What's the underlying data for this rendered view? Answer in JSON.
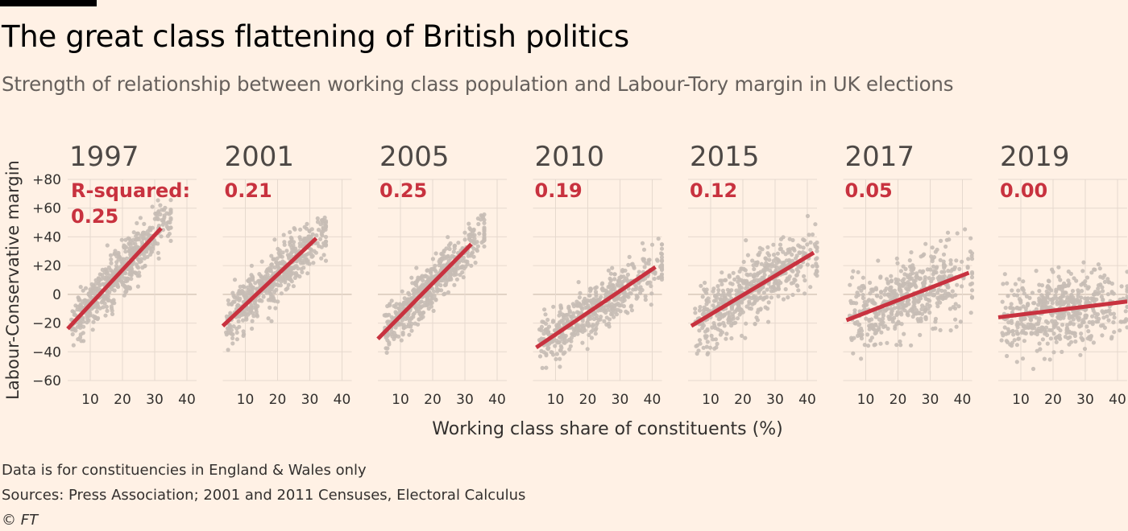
{
  "header": {
    "title": "The great class flattening of British politics",
    "subtitle": "Strength of relationship between working class population and Labour-Tory margin in UK elections"
  },
  "footer": {
    "note": "Data is for constituencies in England & Wales only",
    "sources": "Sources: Press Association; 2001 and 2011 Censuses, Electoral Calculus",
    "credit": "© FT"
  },
  "colors": {
    "background": "#fff1e5",
    "dots": "#c7bdb5",
    "trend": "#c8323f",
    "grid": "#e6d9ce",
    "text": "#33302e"
  },
  "chart_data": {
    "type": "scatter",
    "title": "The great class flattening of British politics",
    "xlabel": "Working class share of constituents (%)",
    "ylabel": "Labour-Conservative margin",
    "xlim": [
      3,
      43
    ],
    "ylim": [
      -60,
      80
    ],
    "x_ticks": [
      10,
      20,
      30,
      40
    ],
    "y_ticks": [
      -60,
      -40,
      -20,
      0,
      20,
      40,
      60,
      80
    ],
    "y_tick_labels": [
      "−60",
      "−40",
      "−20",
      "0",
      "+20",
      "+40",
      "+60",
      "+80"
    ],
    "r_squared_prefix": "R-squared:",
    "panels": [
      {
        "year": "1997",
        "r_squared": "0.25",
        "trend": [
          [
            3,
            -24
          ],
          [
            32,
            46
          ]
        ],
        "cloud": {
          "x_min": 4,
          "x_max": 35,
          "slope": 2.4,
          "intercept": -31,
          "noise": 22,
          "y_min": -40,
          "y_max": 70
        }
      },
      {
        "year": "2001",
        "r_squared": "0.21",
        "trend": [
          [
            3,
            -22
          ],
          [
            32,
            39
          ]
        ],
        "cloud": {
          "x_min": 4,
          "x_max": 35,
          "slope": 2.1,
          "intercept": -28,
          "noise": 22,
          "y_min": -42,
          "y_max": 70
        }
      },
      {
        "year": "2005",
        "r_squared": "0.25",
        "trend": [
          [
            3,
            -31
          ],
          [
            32,
            35
          ]
        ],
        "cloud": {
          "x_min": 5,
          "x_max": 36,
          "slope": 2.3,
          "intercept": -38,
          "noise": 20,
          "y_min": -45,
          "y_max": 68
        }
      },
      {
        "year": "2010",
        "r_squared": "0.19",
        "trend": [
          [
            4,
            -37
          ],
          [
            41,
            19
          ]
        ],
        "cloud": {
          "x_min": 5,
          "x_max": 43,
          "slope": 1.5,
          "intercept": -43,
          "noise": 22,
          "y_min": -52,
          "y_max": 65
        }
      },
      {
        "year": "2015",
        "r_squared": "0.12",
        "trend": [
          [
            4,
            -22
          ],
          [
            42,
            29
          ]
        ],
        "cloud": {
          "x_min": 5,
          "x_max": 43,
          "slope": 1.35,
          "intercept": -27,
          "noise": 28,
          "y_min": -52,
          "y_max": 80
        }
      },
      {
        "year": "2017",
        "r_squared": "0.05",
        "trend": [
          [
            4,
            -18
          ],
          [
            42,
            15
          ]
        ],
        "cloud": {
          "x_min": 5,
          "x_max": 43,
          "slope": 0.85,
          "intercept": -21,
          "noise": 32,
          "y_min": -50,
          "y_max": 76
        }
      },
      {
        "year": "2019",
        "r_squared": "0.00",
        "trend": [
          [
            3,
            -16
          ],
          [
            43,
            -5
          ]
        ],
        "cloud": {
          "x_min": 4,
          "x_max": 43,
          "slope": 0.27,
          "intercept": -17,
          "noise": 33,
          "y_min": -58,
          "y_max": 76
        }
      }
    ]
  }
}
